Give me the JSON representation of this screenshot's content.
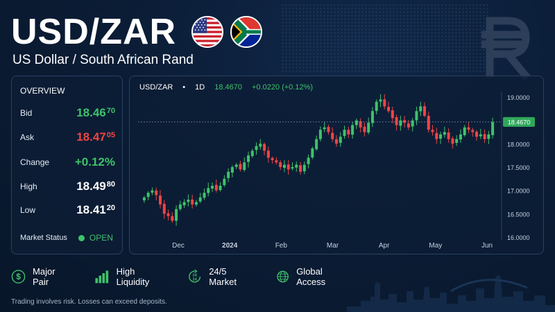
{
  "header": {
    "title": "USD/ZAR",
    "subtitle": "US Dollar / South African Rand",
    "flags": [
      "us-flag-icon",
      "south-africa-flag-icon"
    ],
    "watermark_icon": "rand-currency-icon"
  },
  "overview": {
    "title": "OVERVIEW",
    "rows": [
      {
        "label": "Bid",
        "value": "18.46",
        "pips": "70",
        "color": "#3fc26a"
      },
      {
        "label": "Ask",
        "value": "18.47",
        "pips": "05",
        "color": "#f04444"
      },
      {
        "label": "Change",
        "value": "+0.12%",
        "pips": "",
        "color": "#3fc26a"
      },
      {
        "label": "High",
        "value": "18.49",
        "pips": "80",
        "color": "#ffffff"
      },
      {
        "label": "Low",
        "value": "18.41",
        "pips": "20",
        "color": "#ffffff"
      }
    ],
    "market_status_label": "Market Status",
    "market_status_value": "OPEN"
  },
  "chart_header": {
    "symbol": "USD/ZAR",
    "separator": "•",
    "timeframe": "1D",
    "price": "18.4670",
    "change": "+0.0220 (+0.12%)"
  },
  "features": [
    {
      "icon": "dollar-circle-icon",
      "label": "Major Pair"
    },
    {
      "icon": "bar-chart-icon",
      "label": "High Liquidity"
    },
    {
      "icon": "clock-24-icon",
      "label": "24/5 Market"
    },
    {
      "icon": "globe-icon",
      "label": "Global Access"
    }
  ],
  "disclaimer": "Trading involves risk. Losses can exceed deposits.",
  "colors": {
    "background": "#0b1d36",
    "panel_border": "#2a4163",
    "up": "#3fc26a",
    "down": "#f04444"
  },
  "chart_data": {
    "type": "candlestick",
    "y_ticks": [
      "19.0000",
      "18.5000",
      "18.0000",
      "17.5000",
      "17.0000",
      "16.5000",
      "16.0000"
    ],
    "ylim": [
      16.0,
      19.0
    ],
    "x_ticks": [
      "Dec",
      "2024",
      "Feb",
      "Mar",
      "Apr",
      "May",
      "Jun"
    ],
    "last_price": 18.467,
    "last_price_label": "18.4670",
    "grid": false,
    "closes": [
      16.85,
      16.95,
      17.0,
      16.9,
      16.7,
      16.5,
      16.45,
      16.35,
      16.6,
      16.7,
      16.75,
      16.8,
      16.7,
      16.75,
      16.85,
      16.95,
      17.05,
      17.1,
      17.0,
      17.1,
      17.25,
      17.4,
      17.5,
      17.55,
      17.45,
      17.6,
      17.75,
      17.85,
      17.95,
      18.0,
      17.85,
      17.7,
      17.65,
      17.6,
      17.5,
      17.55,
      17.45,
      17.5,
      17.55,
      17.4,
      17.55,
      17.7,
      17.9,
      18.1,
      18.3,
      18.35,
      18.25,
      18.1,
      18.0,
      18.15,
      18.3,
      18.2,
      18.4,
      18.5,
      18.35,
      18.25,
      18.45,
      18.7,
      18.9,
      18.95,
      18.8,
      18.7,
      18.55,
      18.4,
      18.5,
      18.45,
      18.35,
      18.5,
      18.7,
      18.8,
      18.6,
      18.3,
      18.25,
      18.1,
      18.2,
      18.25,
      18.1,
      18.0,
      18.1,
      18.2,
      18.35,
      18.3,
      18.25,
      18.15,
      18.2,
      18.1,
      18.2,
      18.467
    ]
  }
}
